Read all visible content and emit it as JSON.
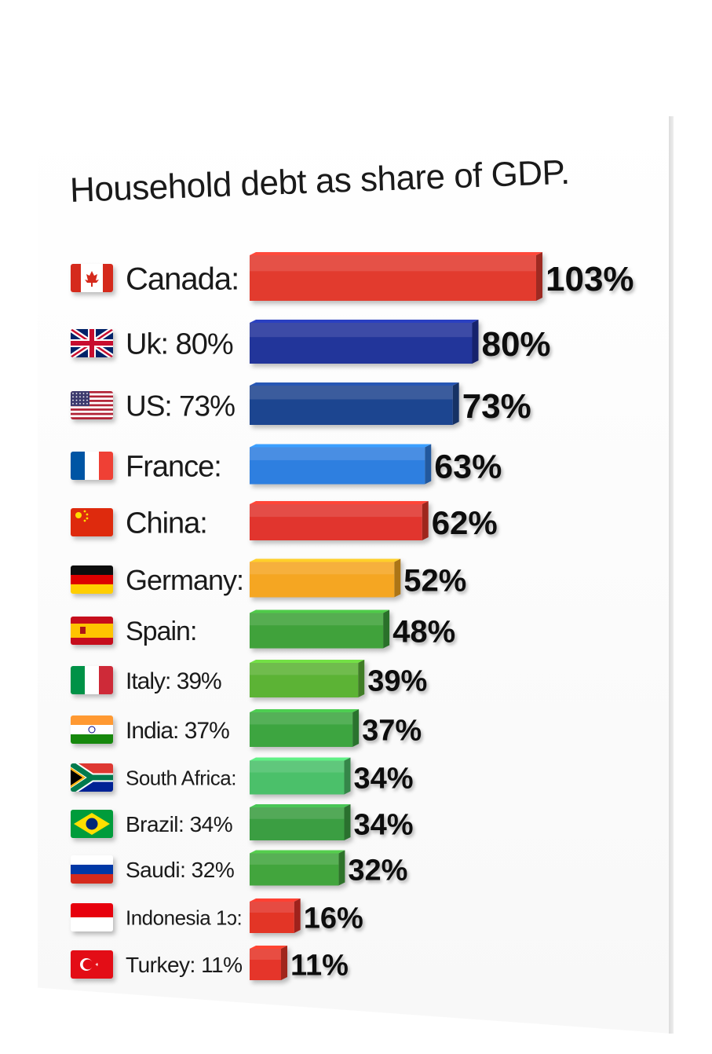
{
  "chart_data": {
    "type": "bar",
    "orientation": "horizontal",
    "title": "Household debt as share of GDP.",
    "categories": [
      "Canada",
      "Uk",
      "US",
      "France",
      "China",
      "Germany",
      "Spain",
      "Italy",
      "India",
      "South Africa",
      "Brazil",
      "Saudi",
      "Indonesia",
      "Turkey"
    ],
    "category_labels": [
      "Canada:",
      "Uk: 80%",
      "US: 73%",
      "France:",
      "China:",
      "Germany:",
      "Spain:",
      "Italy: 39%",
      "India: 37%",
      "South Africa:",
      "Brazil: 34%",
      "Saudi: 32%",
      "Indonesia 1ɔ:",
      "Turkey: 11%"
    ],
    "values": [
      103,
      80,
      73,
      63,
      62,
      52,
      48,
      39,
      37,
      34,
      34,
      32,
      16,
      11
    ],
    "value_labels": [
      "103%",
      "80%",
      "73%",
      "63%",
      "62%",
      "52%",
      "48%",
      "39%",
      "37%",
      "34%",
      "34%",
      "32%",
      "16%",
      "11%"
    ],
    "flags": [
      "canada-flag",
      "uk-flag",
      "us-flag",
      "france-flag",
      "china-flag",
      "germany-flag",
      "spain-flag",
      "italy-flag",
      "india-flag",
      "south-africa-flag",
      "brazil-flag",
      "russia-flag",
      "indonesia-flag",
      "turkey-flag"
    ],
    "bar_colors": [
      "#e23a2e",
      "#23349a",
      "#1f4590",
      "#2f7fe0",
      "#e1362d",
      "#f5a623",
      "#3fa23a",
      "#5cb336",
      "#3ea541",
      "#4cc06a",
      "#3b9e43",
      "#43a53e",
      "#e33428",
      "#e53629"
    ],
    "xlim": [
      0,
      103
    ],
    "grid": false,
    "legend": "none"
  }
}
